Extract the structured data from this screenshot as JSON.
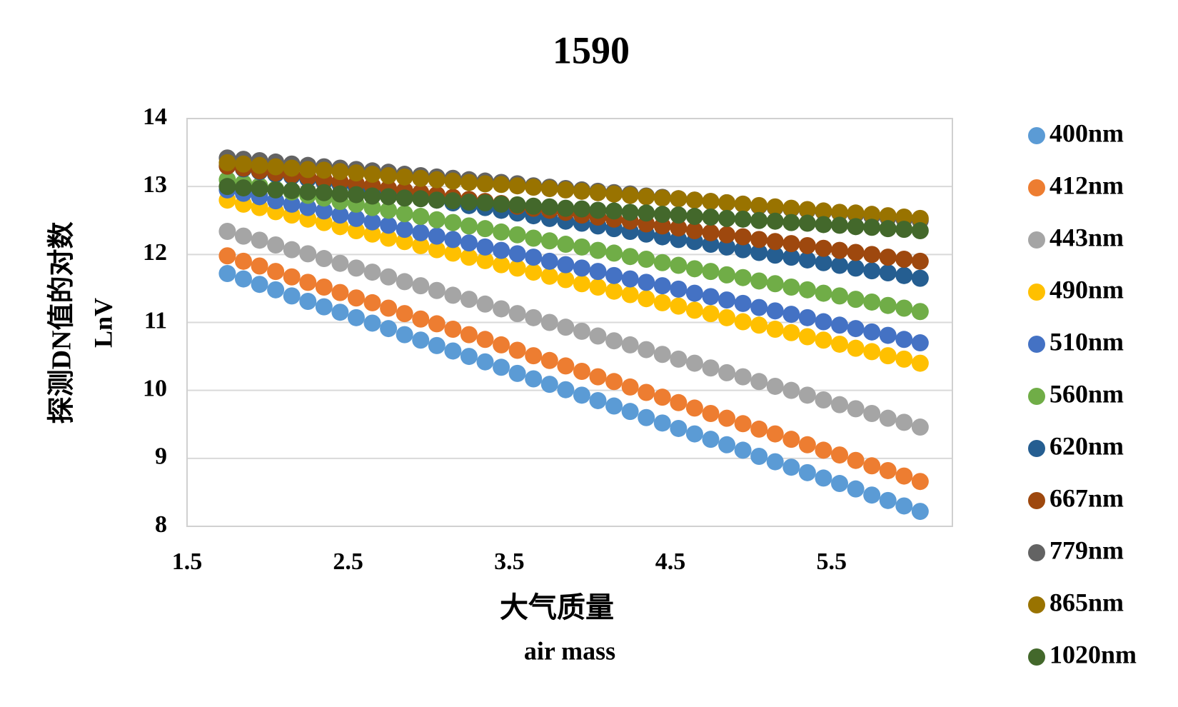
{
  "chart_data": {
    "type": "scatter",
    "title": "1590",
    "x_label": "大气质量",
    "x_label_2": "air mass",
    "y_label": "探测DN值的对数",
    "y_label_2": "LnV",
    "xlim": [
      1.5,
      6.25
    ],
    "xticks": [
      1.5,
      2.5,
      3.5,
      4.5,
      5.5
    ],
    "ylim": [
      8,
      14
    ],
    "yticks": [
      8,
      9,
      10,
      11,
      12,
      13,
      14
    ],
    "grid": true,
    "legend": "right",
    "x": [
      1.75,
      1.85,
      1.95,
      2.05,
      2.15,
      2.25,
      2.35,
      2.45,
      2.55,
      2.65,
      2.75,
      2.85,
      2.95,
      3.05,
      3.15,
      3.25,
      3.35,
      3.45,
      3.55,
      3.65,
      3.75,
      3.85,
      3.95,
      4.05,
      4.15,
      4.25,
      4.35,
      4.45,
      4.55,
      4.65,
      4.75,
      4.85,
      4.95,
      5.05,
      5.15,
      5.25,
      5.35,
      5.45,
      5.55,
      5.65,
      5.75,
      5.85,
      5.95,
      6.05
    ],
    "series": [
      {
        "name": "400nm",
        "color": "#5b9bd5",
        "values": [
          11.72,
          11.64,
          11.56,
          11.48,
          11.39,
          11.31,
          11.23,
          11.15,
          11.07,
          10.99,
          10.91,
          10.82,
          10.74,
          10.66,
          10.58,
          10.5,
          10.42,
          10.34,
          10.25,
          10.17,
          10.09,
          10.01,
          9.93,
          9.85,
          9.77,
          9.69,
          9.6,
          9.52,
          9.44,
          9.36,
          9.28,
          9.2,
          9.12,
          9.03,
          8.95,
          8.87,
          8.79,
          8.71,
          8.63,
          8.55,
          8.46,
          8.38,
          8.3,
          8.22
        ]
      },
      {
        "name": "412nm",
        "color": "#ed7d31",
        "values": [
          11.98,
          11.9,
          11.83,
          11.75,
          11.67,
          11.59,
          11.52,
          11.44,
          11.36,
          11.29,
          11.21,
          11.13,
          11.05,
          10.98,
          10.9,
          10.82,
          10.75,
          10.67,
          10.59,
          10.51,
          10.44,
          10.36,
          10.28,
          10.2,
          10.13,
          10.05,
          9.97,
          9.9,
          9.82,
          9.74,
          9.66,
          9.59,
          9.51,
          9.43,
          9.36,
          9.28,
          9.2,
          9.12,
          9.05,
          8.97,
          8.89,
          8.82,
          8.74,
          8.66
        ]
      },
      {
        "name": "443nm",
        "color": "#a5a5a5",
        "values": [
          12.34,
          12.27,
          12.21,
          12.14,
          12.07,
          12.01,
          11.94,
          11.87,
          11.8,
          11.74,
          11.67,
          11.6,
          11.54,
          11.47,
          11.4,
          11.34,
          11.27,
          11.2,
          11.13,
          11.07,
          11.0,
          10.93,
          10.87,
          10.8,
          10.73,
          10.67,
          10.6,
          10.53,
          10.46,
          10.4,
          10.33,
          10.26,
          10.2,
          10.13,
          10.06,
          10.0,
          9.93,
          9.86,
          9.79,
          9.73,
          9.66,
          9.59,
          9.53,
          9.46
        ]
      },
      {
        "name": "490nm",
        "color": "#ffc000",
        "values": [
          12.8,
          12.74,
          12.69,
          12.63,
          12.58,
          12.52,
          12.47,
          12.41,
          12.35,
          12.3,
          12.24,
          12.19,
          12.13,
          12.07,
          12.02,
          11.96,
          11.91,
          11.85,
          11.8,
          11.74,
          11.68,
          11.63,
          11.57,
          11.52,
          11.46,
          11.41,
          11.35,
          11.29,
          11.24,
          11.18,
          11.13,
          11.07,
          11.01,
          10.96,
          10.9,
          10.85,
          10.79,
          10.74,
          10.68,
          10.62,
          10.57,
          10.51,
          10.46,
          10.4
        ]
      },
      {
        "name": "510nm",
        "color": "#4472c4",
        "values": [
          12.95,
          12.9,
          12.85,
          12.79,
          12.74,
          12.69,
          12.64,
          12.58,
          12.53,
          12.48,
          12.43,
          12.37,
          12.32,
          12.27,
          12.22,
          12.17,
          12.11,
          12.06,
          12.01,
          11.96,
          11.9,
          11.85,
          11.8,
          11.75,
          11.69,
          11.64,
          11.59,
          11.54,
          11.49,
          11.43,
          11.38,
          11.33,
          11.28,
          11.22,
          11.17,
          11.12,
          11.07,
          11.01,
          10.96,
          10.91,
          10.86,
          10.81,
          10.75,
          10.7
        ]
      },
      {
        "name": "560nm",
        "color": "#70ad47",
        "values": [
          13.1,
          13.05,
          13.01,
          12.96,
          12.92,
          12.87,
          12.83,
          12.78,
          12.74,
          12.69,
          12.65,
          12.6,
          12.56,
          12.51,
          12.47,
          12.42,
          12.38,
          12.33,
          12.29,
          12.24,
          12.2,
          12.15,
          12.11,
          12.06,
          12.02,
          11.97,
          11.93,
          11.88,
          11.84,
          11.79,
          11.75,
          11.7,
          11.66,
          11.61,
          11.57,
          11.52,
          11.48,
          11.43,
          11.39,
          11.34,
          11.3,
          11.25,
          11.21,
          11.16
        ]
      },
      {
        "name": "620nm",
        "color": "#255e91",
        "values": [
          13.3,
          13.26,
          13.22,
          13.18,
          13.15,
          13.11,
          13.07,
          13.03,
          12.99,
          12.95,
          12.92,
          12.88,
          12.84,
          12.8,
          12.76,
          12.72,
          12.69,
          12.65,
          12.61,
          12.57,
          12.53,
          12.49,
          12.46,
          12.42,
          12.38,
          12.34,
          12.3,
          12.26,
          12.22,
          12.19,
          12.15,
          12.11,
          12.07,
          12.03,
          11.99,
          11.96,
          11.92,
          11.88,
          11.84,
          11.8,
          11.76,
          11.73,
          11.69,
          11.65
        ]
      },
      {
        "name": "667nm",
        "color": "#9e480e",
        "values": [
          13.3,
          13.27,
          13.23,
          13.2,
          13.17,
          13.14,
          13.1,
          13.07,
          13.04,
          13.01,
          12.97,
          12.94,
          12.91,
          12.88,
          12.84,
          12.81,
          12.78,
          12.75,
          12.71,
          12.68,
          12.65,
          12.62,
          12.58,
          12.55,
          12.52,
          12.49,
          12.45,
          12.42,
          12.39,
          12.35,
          12.32,
          12.29,
          12.26,
          12.22,
          12.19,
          12.16,
          12.13,
          12.09,
          12.06,
          12.03,
          12.0,
          11.96,
          11.93,
          11.9
        ]
      },
      {
        "name": "779nm",
        "color": "#636363",
        "values": [
          13.42,
          13.4,
          13.38,
          13.36,
          13.33,
          13.31,
          13.29,
          13.27,
          13.25,
          13.23,
          13.21,
          13.18,
          13.16,
          13.14,
          13.12,
          13.1,
          13.08,
          13.06,
          13.04,
          13.01,
          12.99,
          12.97,
          12.95,
          12.93,
          12.91,
          12.89,
          12.86,
          12.84,
          12.82,
          12.8,
          12.78,
          12.76,
          12.74,
          12.71,
          12.69,
          12.67,
          12.65,
          12.63,
          12.61,
          12.59,
          12.56,
          12.54,
          12.52,
          12.5
        ]
      },
      {
        "name": "865nm",
        "color": "#997300",
        "values": [
          13.35,
          13.33,
          13.31,
          13.29,
          13.27,
          13.25,
          13.24,
          13.22,
          13.2,
          13.18,
          13.16,
          13.14,
          13.12,
          13.1,
          13.08,
          13.06,
          13.04,
          13.03,
          13.01,
          12.99,
          12.97,
          12.95,
          12.93,
          12.91,
          12.89,
          12.87,
          12.85,
          12.83,
          12.82,
          12.8,
          12.78,
          12.76,
          12.74,
          12.72,
          12.7,
          12.68,
          12.66,
          12.64,
          12.62,
          12.61,
          12.59,
          12.57,
          12.55,
          12.53
        ]
      },
      {
        "name": "1020nm",
        "color": "#43682b",
        "values": [
          13.0,
          12.98,
          12.97,
          12.95,
          12.94,
          12.92,
          12.91,
          12.89,
          12.88,
          12.86,
          12.85,
          12.83,
          12.82,
          12.8,
          12.79,
          12.77,
          12.76,
          12.74,
          12.73,
          12.71,
          12.7,
          12.68,
          12.67,
          12.65,
          12.64,
          12.62,
          12.61,
          12.59,
          12.58,
          12.56,
          12.55,
          12.53,
          12.52,
          12.5,
          12.49,
          12.47,
          12.46,
          12.44,
          12.43,
          12.41,
          12.4,
          12.38,
          12.37,
          12.35
        ]
      }
    ]
  }
}
